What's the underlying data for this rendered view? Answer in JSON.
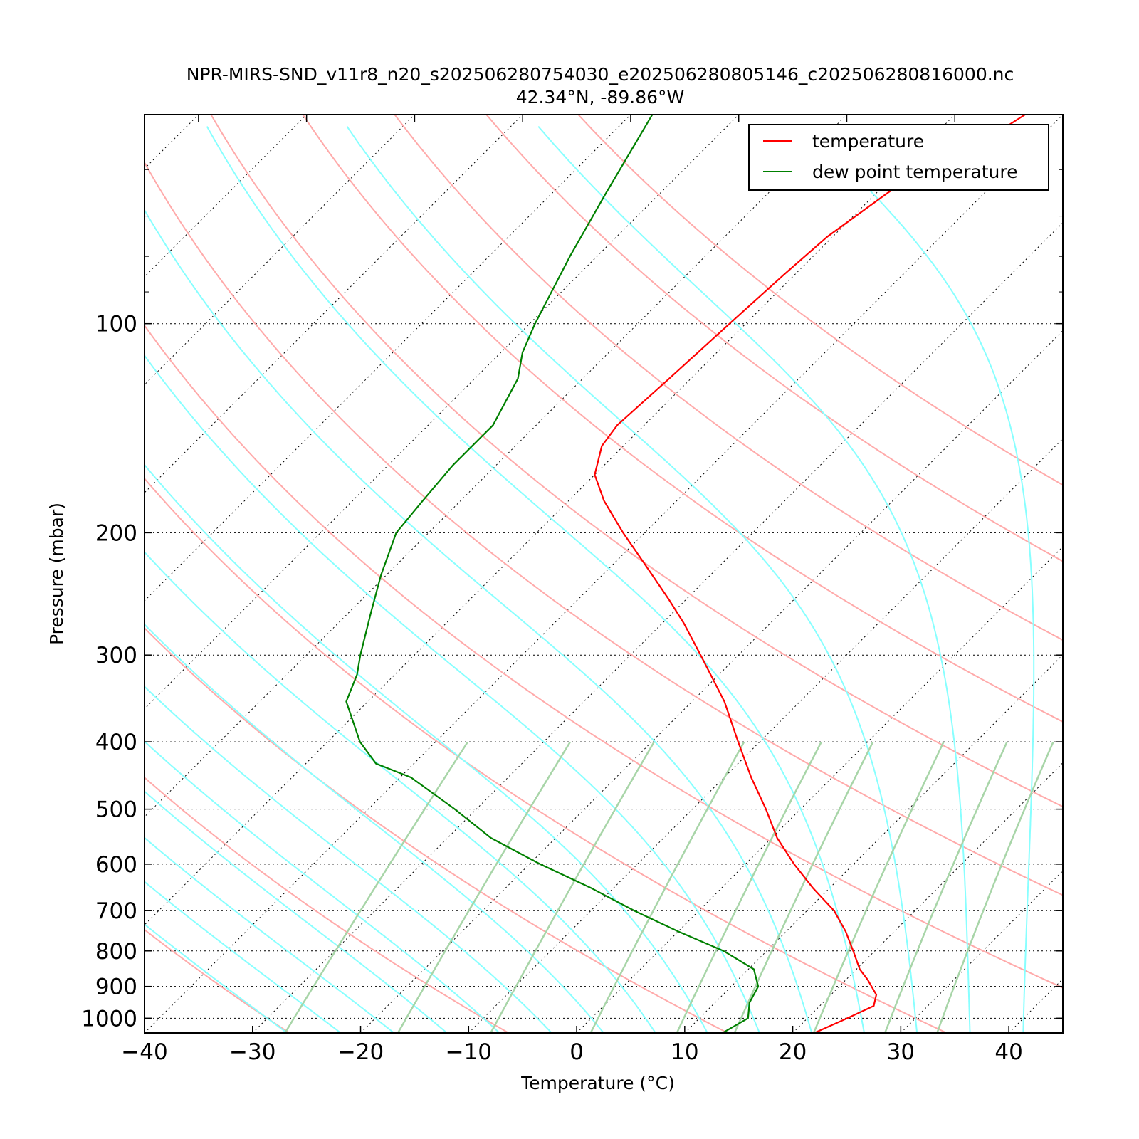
{
  "chart_data": {
    "type": "line",
    "title": "NPR-MIRS-SND_v11r8_n20_s202506280754030_e202506280805146_c202506280816000.nc",
    "subtitle": "42.34°N, -89.86°W",
    "xlabel": "Temperature (°C)",
    "ylabel": "Pressure (mbar)",
    "xlim": [
      -40,
      45
    ],
    "ylim": [
      1050,
      50
    ],
    "y_scale": "log",
    "skew": true,
    "x_ticks": [
      "−40",
      "−30",
      "−20",
      "−10",
      "0",
      "10",
      "20",
      "30",
      "40"
    ],
    "x_tick_values": [
      -40,
      -30,
      -20,
      -10,
      0,
      10,
      20,
      30,
      40
    ],
    "y_ticks": [
      "100",
      "200",
      "300",
      "400",
      "500",
      "600",
      "700",
      "800",
      "900",
      "1000"
    ],
    "y_tick_values": [
      100,
      200,
      300,
      400,
      500,
      600,
      700,
      800,
      900,
      1000
    ],
    "grid": true,
    "legend_position": "top-right",
    "legend": [
      "temperature",
      "dew point temperature"
    ],
    "colors": {
      "temperature": "#ff0000",
      "dewpoint": "#008000",
      "dry_adiabat": "#ffaaaa",
      "moist_adiabat": "#88ffff",
      "mixing_ratio": "#a8d5a8",
      "isotherm_grid": "#000000"
    },
    "series": [
      {
        "name": "temperature",
        "points": [
          {
            "p": 1050,
            "t": 22.0
          },
          {
            "p": 1000,
            "t": 23.7
          },
          {
            "p": 960,
            "t": 25.0
          },
          {
            "p": 925,
            "t": 24.2
          },
          {
            "p": 880,
            "t": 22.0
          },
          {
            "p": 850,
            "t": 20.3
          },
          {
            "p": 800,
            "t": 18.0
          },
          {
            "p": 750,
            "t": 15.5
          },
          {
            "p": 700,
            "t": 12.5
          },
          {
            "p": 650,
            "t": 8.5
          },
          {
            "p": 600,
            "t": 4.5
          },
          {
            "p": 550,
            "t": 0.5
          },
          {
            "p": 500,
            "t": -3.2
          },
          {
            "p": 450,
            "t": -7.5
          },
          {
            "p": 400,
            "t": -12.0
          },
          {
            "p": 350,
            "t": -17.0
          },
          {
            "p": 300,
            "t": -23.5
          },
          {
            "p": 270,
            "t": -28.0
          },
          {
            "p": 250,
            "t": -31.5
          },
          {
            "p": 220,
            "t": -37.5
          },
          {
            "p": 200,
            "t": -42.0
          },
          {
            "p": 180,
            "t": -46.7
          },
          {
            "p": 165,
            "t": -50.0
          },
          {
            "p": 150,
            "t": -52.0
          },
          {
            "p": 140,
            "t": -52.5
          },
          {
            "p": 120,
            "t": -52.0
          },
          {
            "p": 100,
            "t": -51.5
          },
          {
            "p": 85,
            "t": -51.0
          },
          {
            "p": 75,
            "t": -50.5
          },
          {
            "p": 65,
            "t": -49.0
          },
          {
            "p": 60,
            "t": -48.0
          },
          {
            "p": 55,
            "t": -45.0
          },
          {
            "p": 50,
            "t": -43.5
          }
        ]
      },
      {
        "name": "dew point temperature",
        "points": [
          {
            "p": 1050,
            "t": 13.5
          },
          {
            "p": 1000,
            "t": 14.5
          },
          {
            "p": 950,
            "t": 13.2
          },
          {
            "p": 900,
            "t": 12.5
          },
          {
            "p": 850,
            "t": 10.5
          },
          {
            "p": 800,
            "t": 6.0
          },
          {
            "p": 750,
            "t": 0.0
          },
          {
            "p": 700,
            "t": -6.0
          },
          {
            "p": 650,
            "t": -12.0
          },
          {
            "p": 600,
            "t": -19.0
          },
          {
            "p": 550,
            "t": -26.0
          },
          {
            "p": 500,
            "t": -32.0
          },
          {
            "p": 450,
            "t": -39.0
          },
          {
            "p": 430,
            "t": -43.5
          },
          {
            "p": 400,
            "t": -47.0
          },
          {
            "p": 350,
            "t": -52.0
          },
          {
            "p": 320,
            "t": -53.5
          },
          {
            "p": 300,
            "t": -55.0
          },
          {
            "p": 260,
            "t": -58.0
          },
          {
            "p": 230,
            "t": -60.5
          },
          {
            "p": 200,
            "t": -63.0
          },
          {
            "p": 180,
            "t": -63.5
          },
          {
            "p": 160,
            "t": -64.0
          },
          {
            "p": 140,
            "t": -64.0
          },
          {
            "p": 120,
            "t": -66.0
          },
          {
            "p": 110,
            "t": -68.0
          },
          {
            "p": 100,
            "t": -69.5
          },
          {
            "p": 80,
            "t": -72.5
          },
          {
            "p": 65,
            "t": -75.0
          },
          {
            "p": 50,
            "t": -78.0
          }
        ]
      }
    ]
  }
}
